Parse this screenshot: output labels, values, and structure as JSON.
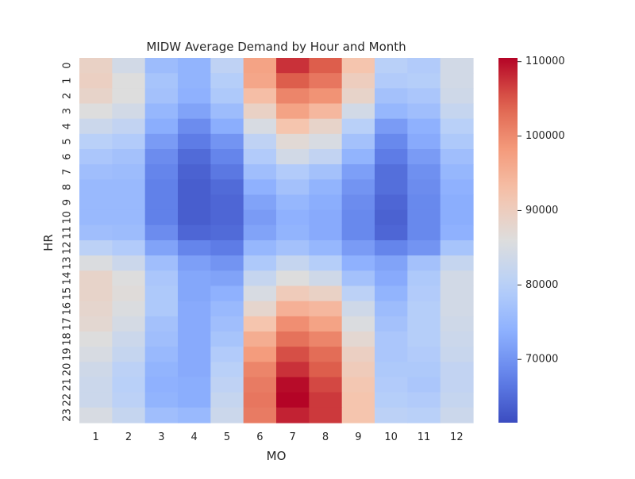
{
  "chart_data": {
    "type": "heatmap",
    "title": "MIDW Average Demand by Hour and Month",
    "xlabel": "MO",
    "ylabel": "HR",
    "x_categories": [
      "1",
      "2",
      "3",
      "4",
      "5",
      "6",
      "7",
      "8",
      "9",
      "10",
      "11",
      "12"
    ],
    "y_categories": [
      "0",
      "1",
      "2",
      "3",
      "4",
      "5",
      "6",
      "7",
      "8",
      "9",
      "10",
      "11",
      "12",
      "13",
      "14",
      "15",
      "16",
      "17",
      "18",
      "19",
      "20",
      "21",
      "22",
      "23"
    ],
    "colormap": "coolwarm",
    "color_range": [
      61500,
      110500
    ],
    "colorbar_ticks": [
      "70000",
      "80000",
      "90000",
      "100000",
      "110000"
    ],
    "values": [
      [
        89000,
        84000,
        76000,
        74500,
        81000,
        97000,
        107500,
        104500,
        92000,
        80000,
        79000,
        84000
      ],
      [
        89500,
        86000,
        77500,
        74500,
        79500,
        96500,
        104500,
        102000,
        90000,
        79000,
        79500,
        84000
      ],
      [
        88500,
        86000,
        77000,
        74000,
        78500,
        93000,
        100500,
        99000,
        88500,
        77000,
        78000,
        83500
      ],
      [
        86000,
        84000,
        75000,
        72000,
        76000,
        89000,
        97000,
        94000,
        84000,
        75000,
        76500,
        82000
      ],
      [
        83000,
        81500,
        73500,
        69000,
        73500,
        85000,
        92000,
        88500,
        80000,
        71000,
        74000,
        80000
      ],
      [
        80000,
        79000,
        71000,
        67000,
        70000,
        81000,
        87000,
        85000,
        77000,
        68500,
        73000,
        78500
      ],
      [
        78000,
        77000,
        69000,
        65000,
        68000,
        79000,
        84000,
        81500,
        74500,
        67000,
        71000,
        76500
      ],
      [
        76500,
        76000,
        68000,
        64000,
        66500,
        76500,
        79000,
        77000,
        71500,
        65500,
        69500,
        75000
      ],
      [
        75500,
        75500,
        67500,
        63500,
        65000,
        74000,
        77000,
        74500,
        70000,
        65500,
        69000,
        74000
      ],
      [
        75500,
        75500,
        67500,
        63500,
        64500,
        72000,
        75000,
        73500,
        69000,
        64500,
        68500,
        73500
      ],
      [
        75500,
        75500,
        67500,
        63500,
        64500,
        71000,
        74000,
        73000,
        68500,
        64000,
        68500,
        73500
      ],
      [
        76500,
        76000,
        69000,
        64500,
        65000,
        72000,
        74500,
        73000,
        68500,
        64500,
        68500,
        74000
      ],
      [
        80500,
        79000,
        72000,
        68000,
        67000,
        75000,
        77000,
        75000,
        71000,
        68000,
        70000,
        77500
      ],
      [
        85500,
        83000,
        76500,
        71500,
        70000,
        78500,
        82000,
        79500,
        74000,
        72000,
        77000,
        82000
      ],
      [
        88500,
        86000,
        78000,
        72500,
        72000,
        82000,
        86000,
        83500,
        77000,
        73000,
        78500,
        84000
      ],
      [
        88500,
        86500,
        78500,
        72500,
        74000,
        85000,
        90500,
        89000,
        80500,
        74500,
        79000,
        84000
      ],
      [
        88000,
        85500,
        78500,
        73000,
        75500,
        88000,
        95000,
        94000,
        83500,
        76000,
        79500,
        84000
      ],
      [
        87500,
        84500,
        77000,
        73000,
        76500,
        92000,
        99500,
        97000,
        85500,
        77000,
        79500,
        83500
      ],
      [
        86000,
        83000,
        76500,
        73000,
        77500,
        95500,
        102500,
        100500,
        87500,
        78000,
        79500,
        83000
      ],
      [
        85000,
        82000,
        75500,
        73000,
        79000,
        98000,
        105500,
        103000,
        89500,
        78000,
        79000,
        82500
      ],
      [
        83500,
        80500,
        74500,
        73000,
        80000,
        100500,
        107500,
        104500,
        90500,
        78500,
        78500,
        81500
      ],
      [
        83000,
        80000,
        74000,
        73500,
        81000,
        101500,
        110000,
        106000,
        91500,
        79000,
        78000,
        81500
      ],
      [
        83000,
        80500,
        74500,
        73500,
        82000,
        102000,
        110500,
        107000,
        92000,
        79500,
        79000,
        82000
      ],
      [
        85000,
        82000,
        76500,
        75500,
        83000,
        101500,
        108500,
        107000,
        92000,
        80500,
        80000,
        83000
      ]
    ]
  }
}
